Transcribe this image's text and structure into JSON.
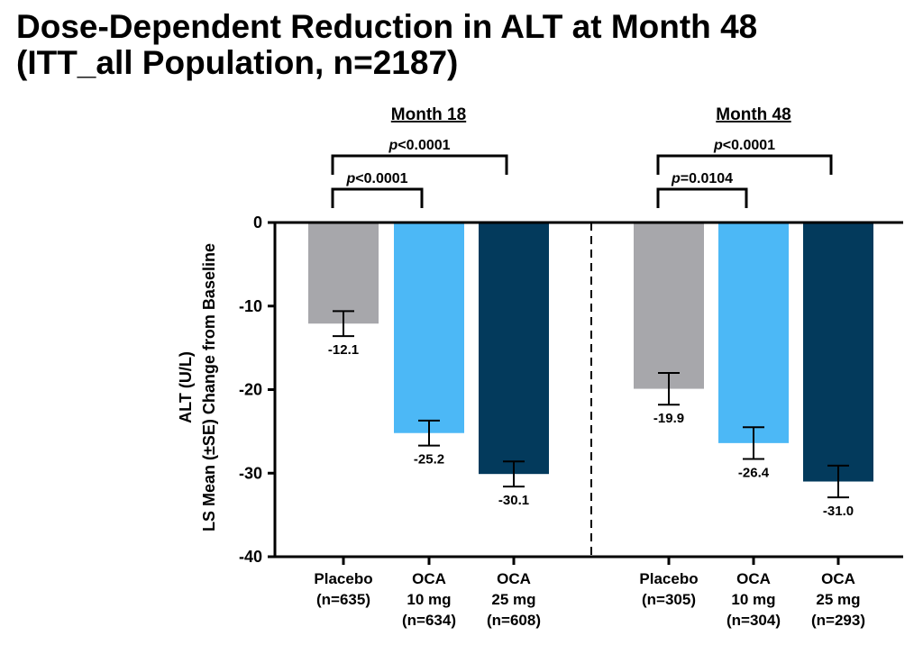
{
  "chart_data": {
    "type": "bar",
    "title": "Dose-Dependent Reduction in ALT at Month 48",
    "subtitle": "(ITT_all Population, n=2187)",
    "ylabel_line1": "ALT (U/L)",
    "ylabel_line2": "LS Mean (±SE) Change from Baseline",
    "ylim": [
      -40,
      0
    ],
    "yticks": [
      "0",
      "-10",
      "-20",
      "-30",
      "-40"
    ],
    "ytick_values": [
      0,
      -10,
      -20,
      -30,
      -40
    ],
    "grid": false,
    "colors": {
      "placebo": "#a7a7ab",
      "oca10": "#4cb8f6",
      "oca25": "#033a5c"
    },
    "groups": [
      {
        "name": "Month 18",
        "bars": [
          {
            "label": [
              "Placebo",
              "(n=635)"
            ],
            "value": -12.1,
            "se": 1.5,
            "value_label": "-12.1",
            "color_key": "placebo"
          },
          {
            "label": [
              "OCA",
              "10 mg",
              "(n=634)"
            ],
            "value": -25.2,
            "se": 1.5,
            "value_label": "-25.2",
            "color_key": "oca10"
          },
          {
            "label": [
              "OCA",
              "25 mg",
              "(n=608)"
            ],
            "value": -30.1,
            "se": 1.5,
            "value_label": "-30.1",
            "color_key": "oca25"
          }
        ],
        "comparisons": [
          {
            "from": 0,
            "to": 2,
            "p": "<0.0001"
          },
          {
            "from": 0,
            "to": 1,
            "p": "<0.0001"
          }
        ]
      },
      {
        "name": "Month 48",
        "bars": [
          {
            "label": [
              "Placebo",
              "(n=305)"
            ],
            "value": -19.9,
            "se": 1.9,
            "value_label": "-19.9",
            "color_key": "placebo"
          },
          {
            "label": [
              "OCA",
              "10 mg",
              "(n=304)"
            ],
            "value": -26.4,
            "se": 1.9,
            "value_label": "-26.4",
            "color_key": "oca10"
          },
          {
            "label": [
              "OCA",
              "25 mg",
              "(n=293)"
            ],
            "value": -31.0,
            "se": 1.9,
            "value_label": "-31.0",
            "color_key": "oca25"
          }
        ],
        "comparisons": [
          {
            "from": 0,
            "to": 2,
            "p": "<0.0001"
          },
          {
            "from": 0,
            "to": 1,
            "p": "=0.0104"
          }
        ]
      }
    ]
  }
}
